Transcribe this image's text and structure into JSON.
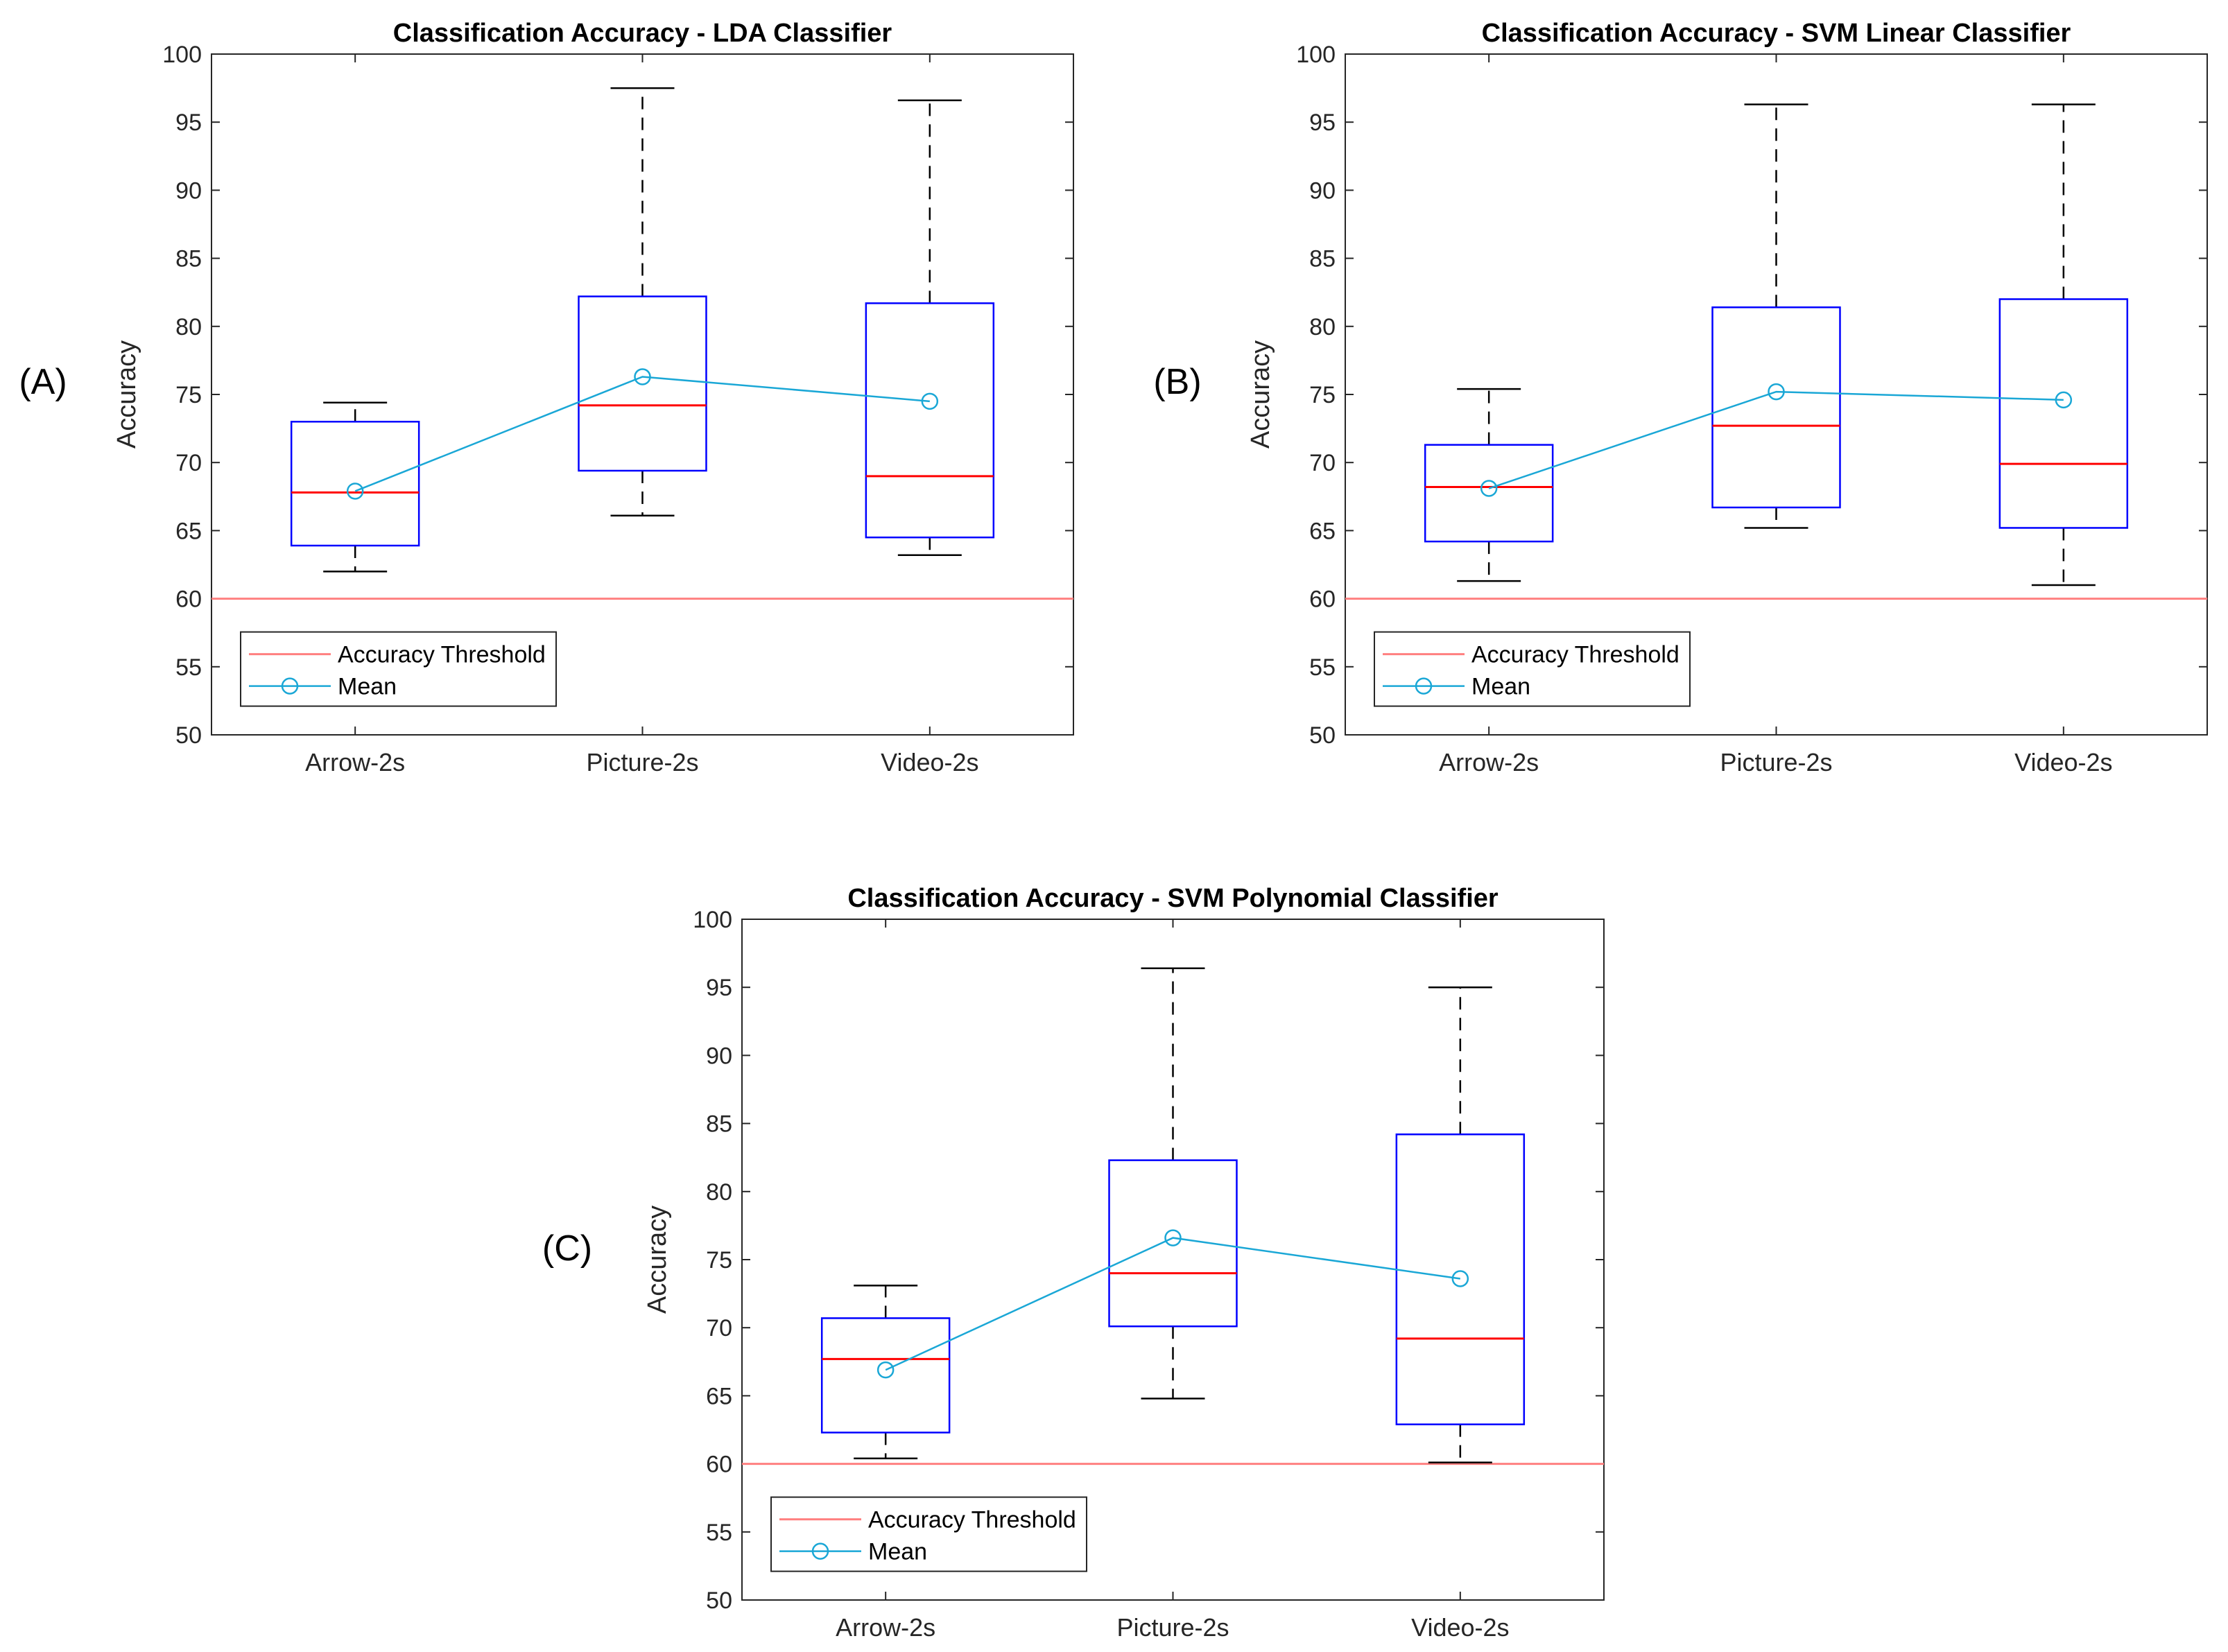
{
  "figure": {
    "panel_labels": [
      "(A)",
      "(B)",
      "(C)"
    ]
  },
  "colors": {
    "box": "#0000ff",
    "median": "#ff0000",
    "whisker": "#000000",
    "threshold": "#ff8080",
    "mean": "#1aa7d6",
    "axis": "#262626",
    "grid_ticks": "#262626"
  },
  "chart_data": [
    {
      "type": "box",
      "title": "Classification Accuracy - LDA Classifier",
      "ylabel": "Accuracy",
      "xlabel": "",
      "categories": [
        "Arrow-2s",
        "Picture-2s",
        "Video-2s"
      ],
      "ylim": [
        50,
        100
      ],
      "yticks": [
        50,
        55,
        60,
        65,
        70,
        75,
        80,
        85,
        90,
        95,
        100
      ],
      "boxes": [
        {
          "min": 62.0,
          "q1": 63.9,
          "median": 67.8,
          "q3": 73.0,
          "max": 74.4
        },
        {
          "min": 66.1,
          "q1": 69.4,
          "median": 74.2,
          "q3": 82.2,
          "max": 97.5
        },
        {
          "min": 63.2,
          "q1": 64.5,
          "median": 69.0,
          "q3": 81.7,
          "max": 96.6
        }
      ],
      "mean": [
        67.9,
        76.3,
        74.5
      ],
      "threshold": 60,
      "legend": {
        "placement": "bottom-left",
        "entries": [
          "Accuracy Threshold",
          "Mean"
        ]
      }
    },
    {
      "type": "box",
      "title": "Classification Accuracy - SVM Linear Classifier",
      "ylabel": "Accuracy",
      "xlabel": "",
      "categories": [
        "Arrow-2s",
        "Picture-2s",
        "Video-2s"
      ],
      "ylim": [
        50,
        100
      ],
      "yticks": [
        50,
        55,
        60,
        65,
        70,
        75,
        80,
        85,
        90,
        95,
        100
      ],
      "boxes": [
        {
          "min": 61.3,
          "q1": 64.2,
          "median": 68.2,
          "q3": 71.3,
          "max": 75.4
        },
        {
          "min": 65.2,
          "q1": 66.7,
          "median": 72.7,
          "q3": 81.4,
          "max": 96.3
        },
        {
          "min": 61.0,
          "q1": 65.2,
          "median": 69.9,
          "q3": 82.0,
          "max": 96.3
        }
      ],
      "mean": [
        68.1,
        75.2,
        74.6
      ],
      "threshold": 60,
      "legend": {
        "placement": "bottom-left",
        "entries": [
          "Accuracy Threshold",
          "Mean"
        ]
      }
    },
    {
      "type": "box",
      "title": "Classification Accuracy - SVM Polynomial Classifier",
      "ylabel": "Accuracy",
      "xlabel": "",
      "categories": [
        "Arrow-2s",
        "Picture-2s",
        "Video-2s"
      ],
      "ylim": [
        50,
        100
      ],
      "yticks": [
        50,
        55,
        60,
        65,
        70,
        75,
        80,
        85,
        90,
        95,
        100
      ],
      "boxes": [
        {
          "min": 60.4,
          "q1": 62.3,
          "median": 67.7,
          "q3": 70.7,
          "max": 73.1
        },
        {
          "min": 64.8,
          "q1": 70.1,
          "median": 74.0,
          "q3": 82.3,
          "max": 96.4
        },
        {
          "min": 60.1,
          "q1": 62.9,
          "median": 69.2,
          "q3": 84.2,
          "max": 95.0
        }
      ],
      "mean": [
        66.9,
        76.6,
        73.6
      ],
      "threshold": 60,
      "legend": {
        "placement": "bottom-left",
        "entries": [
          "Accuracy Threshold",
          "Mean"
        ]
      }
    }
  ]
}
